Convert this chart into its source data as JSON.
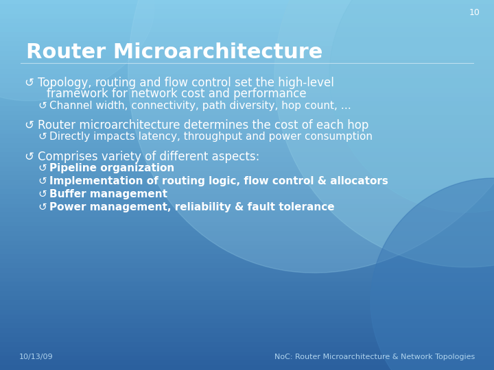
{
  "slide_number": "10",
  "title": "Router Microarchitecture",
  "bullets": [
    {
      "level": 0,
      "text": "Topology, routing and flow control set the high-level\n   framework for network cost and performance",
      "bold": false,
      "extra_gap_before": false
    },
    {
      "level": 1,
      "text": "Channel width, connectivity, path diversity, hop count, …",
      "bold": false,
      "extra_gap_before": false
    },
    {
      "level": 0,
      "text": "Router microarchitecture determines the cost of each hop",
      "bold": false,
      "extra_gap_before": true
    },
    {
      "level": 1,
      "text": "Directly impacts latency, throughput and power consumption",
      "bold": false,
      "extra_gap_before": false
    },
    {
      "level": 0,
      "text": "Comprises variety of different aspects:",
      "bold": false,
      "extra_gap_before": true
    },
    {
      "level": 1,
      "text": "Pipeline organization",
      "bold": true,
      "extra_gap_before": false
    },
    {
      "level": 1,
      "text": "Implementation of routing logic, flow control & allocators",
      "bold": true,
      "extra_gap_before": false
    },
    {
      "level": 1,
      "text": "Buffer management",
      "bold": true,
      "extra_gap_before": false
    },
    {
      "level": 1,
      "text": "Power management, reliability & fault tolerance",
      "bold": true,
      "extra_gap_before": false
    }
  ],
  "footer_left": "10/13/09",
  "footer_right": "NoC: Router Microarchitecture & Network Topologies",
  "text_color": "#ffffff",
  "title_fontsize": 22,
  "bullet_fontsize_l0": 12,
  "bullet_fontsize_l1": 11,
  "footer_fontsize": 8,
  "slide_num_fontsize": 9,
  "bg_light": "#7ec8e8",
  "bg_mid": "#4fa0cc",
  "bg_dark": "#2a5f9e",
  "circle_color1": "#5ba8d0",
  "circle_color2": "#4a90be",
  "circle_color3": "#6ab8d8"
}
